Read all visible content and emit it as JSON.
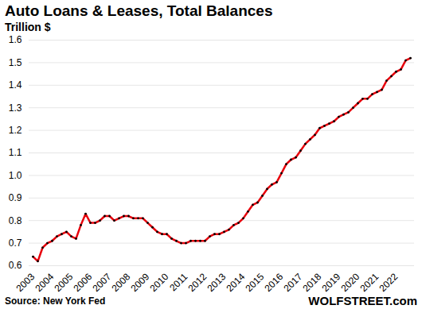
{
  "chart_data": {
    "type": "line",
    "title": "Auto Loans & Leases, Total Balances",
    "subtitle": "Trillion $",
    "source": "Source: New York Fed",
    "credit": "WOLFSTREET.com",
    "categories": [
      "2003",
      null,
      null,
      null,
      "2004",
      null,
      null,
      null,
      "2005",
      null,
      null,
      null,
      "2006",
      null,
      null,
      null,
      "2007",
      null,
      null,
      null,
      "2008",
      null,
      null,
      null,
      "2009",
      null,
      null,
      null,
      "2010",
      null,
      null,
      null,
      "2011",
      null,
      null,
      null,
      "2012",
      null,
      null,
      null,
      "2013",
      null,
      null,
      null,
      "2014",
      null,
      null,
      null,
      "2015",
      null,
      null,
      null,
      "2016",
      null,
      null,
      null,
      "2017",
      null,
      null,
      null,
      "2018",
      null,
      null,
      null,
      "2019",
      null,
      null,
      null,
      "2020",
      null,
      null,
      null,
      "2021",
      null,
      null,
      null,
      "2022",
      null,
      null,
      null
    ],
    "values": [
      0.64,
      0.62,
      0.68,
      0.7,
      0.71,
      0.73,
      0.74,
      0.75,
      0.73,
      0.72,
      0.78,
      0.83,
      0.79,
      0.79,
      0.8,
      0.82,
      0.82,
      0.8,
      0.81,
      0.82,
      0.82,
      0.81,
      0.81,
      0.81,
      0.79,
      0.77,
      0.75,
      0.74,
      0.74,
      0.72,
      0.71,
      0.7,
      0.7,
      0.71,
      0.71,
      0.71,
      0.71,
      0.73,
      0.74,
      0.74,
      0.75,
      0.76,
      0.78,
      0.79,
      0.81,
      0.84,
      0.87,
      0.88,
      0.91,
      0.94,
      0.96,
      0.97,
      1.01,
      1.05,
      1.07,
      1.08,
      1.11,
      1.14,
      1.16,
      1.18,
      1.21,
      1.22,
      1.23,
      1.24,
      1.26,
      1.27,
      1.28,
      1.3,
      1.32,
      1.34,
      1.34,
      1.36,
      1.37,
      1.38,
      1.42,
      1.44,
      1.46,
      1.47,
      1.51,
      1.52
    ],
    "color": "#e8000b",
    "marker": "dot",
    "ylim": [
      0.6,
      1.6
    ],
    "yticks": [
      0.6,
      0.7,
      0.8,
      0.9,
      {
        "value": 1,
        "label": "1.0"
      },
      1.1,
      1.2,
      1.3,
      1.4,
      1.5,
      1.6
    ],
    "grid": true
  }
}
